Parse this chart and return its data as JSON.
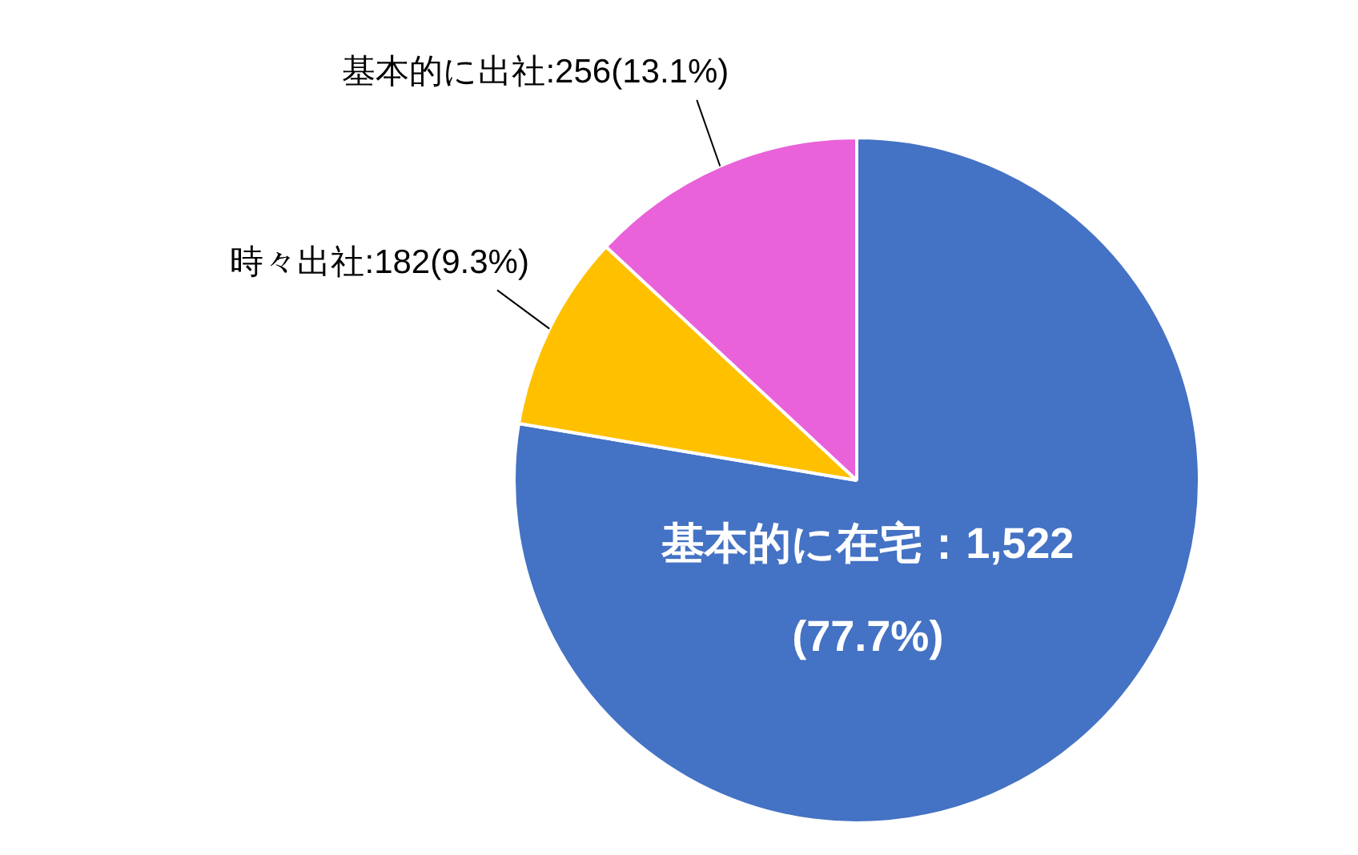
{
  "chart_data": {
    "type": "pie",
    "categories": [
      "基本的に在宅",
      "時々出社",
      "基本的に出社"
    ],
    "values": [
      1522,
      182,
      256
    ],
    "colors": [
      "#4472c4",
      "#ffc000",
      "#e962d9"
    ],
    "value_labels": [
      "：1,522\n(77.7%)",
      ":182(9.3%)",
      ":256(13.1%)"
    ]
  }
}
